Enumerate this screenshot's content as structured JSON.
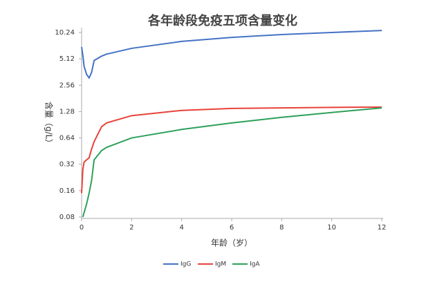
{
  "chart_data": {
    "type": "line",
    "title": "各年龄段免疫五项含量变化",
    "x_label": "年龄（岁）",
    "y_label": "含量（g/L）",
    "x": [
      0,
      0.05,
      0.1,
      0.2,
      0.3,
      0.4,
      0.5,
      0.8,
      1,
      2,
      4,
      6,
      8,
      10,
      12
    ],
    "series": [
      {
        "name": "IgG",
        "color": "#4472c4",
        "values": [
          7.0,
          5.6,
          4.2,
          3.4,
          3.1,
          3.6,
          4.9,
          5.5,
          5.8,
          6.75,
          8.1,
          9.0,
          9.7,
          10.24,
          10.8
        ]
      },
      {
        "name": "IgM",
        "color": "#e8413a",
        "values": [
          0.15,
          0.28,
          0.34,
          0.36,
          0.38,
          0.48,
          0.58,
          0.86,
          0.95,
          1.15,
          1.32,
          1.39,
          1.41,
          1.43,
          1.44
        ]
      },
      {
        "name": "IgA",
        "color": "#2ca05a",
        "values": [
          null,
          0.08,
          0.09,
          0.113,
          0.15,
          0.21,
          0.36,
          0.46,
          0.5,
          0.64,
          0.8,
          0.95,
          1.1,
          1.25,
          1.41
        ]
      }
    ],
    "xlim": [
      0,
      12
    ],
    "xticks": [
      0,
      2,
      4,
      6,
      8,
      10,
      12
    ],
    "ylim": [
      0.08,
      10.24
    ],
    "yticks": [
      0.08,
      0.16,
      0.32,
      0.64,
      1.28,
      2.56,
      5.12,
      10.24
    ],
    "y_log_base": 2,
    "grid": false,
    "legend": "bottom"
  }
}
